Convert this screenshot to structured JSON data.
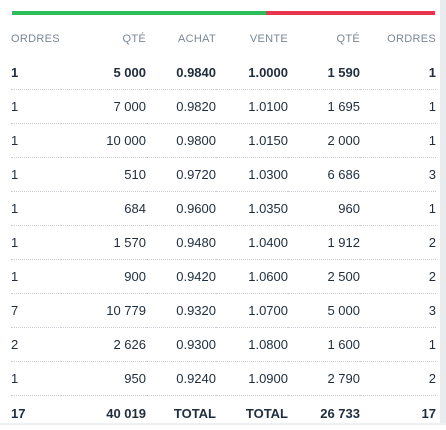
{
  "depth": {
    "buy_share": 0.6,
    "buy_color": "#2dbd5a",
    "sell_color": "#e8344e"
  },
  "headers": {
    "bid_orders": "ORDRES",
    "bid_qty": "QTÉ",
    "bid": "ACHAT",
    "ask": "VENTE",
    "ask_qty": "QTÉ",
    "ask_orders": "ORDRES"
  },
  "rows": [
    {
      "bid_orders": "1",
      "bid_qty": "5 000",
      "bid": "0.9840",
      "ask": "1.0000",
      "ask_qty": "1 590",
      "ask_orders": "1"
    },
    {
      "bid_orders": "1",
      "bid_qty": "7 000",
      "bid": "0.9820",
      "ask": "1.0100",
      "ask_qty": "1 695",
      "ask_orders": "1"
    },
    {
      "bid_orders": "1",
      "bid_qty": "10 000",
      "bid": "0.9800",
      "ask": "1.0150",
      "ask_qty": "2 000",
      "ask_orders": "1"
    },
    {
      "bid_orders": "1",
      "bid_qty": "510",
      "bid": "0.9720",
      "ask": "1.0300",
      "ask_qty": "6 686",
      "ask_orders": "3"
    },
    {
      "bid_orders": "1",
      "bid_qty": "684",
      "bid": "0.9600",
      "ask": "1.0350",
      "ask_qty": "960",
      "ask_orders": "1"
    },
    {
      "bid_orders": "1",
      "bid_qty": "1 570",
      "bid": "0.9480",
      "ask": "1.0400",
      "ask_qty": "1 912",
      "ask_orders": "2"
    },
    {
      "bid_orders": "1",
      "bid_qty": "900",
      "bid": "0.9420",
      "ask": "1.0600",
      "ask_qty": "2 500",
      "ask_orders": "2"
    },
    {
      "bid_orders": "7",
      "bid_qty": "10 779",
      "bid": "0.9320",
      "ask": "1.0700",
      "ask_qty": "5 000",
      "ask_orders": "3"
    },
    {
      "bid_orders": "2",
      "bid_qty": "2 626",
      "bid": "0.9300",
      "ask": "1.0800",
      "ask_qty": "1 600",
      "ask_orders": "1"
    },
    {
      "bid_orders": "1",
      "bid_qty": "950",
      "bid": "0.9240",
      "ask": "1.0900",
      "ask_qty": "2 790",
      "ask_orders": "2"
    }
  ],
  "totals": {
    "bid_orders": "17",
    "bid_qty": "40 019",
    "bid_label": "TOTAL",
    "ask_label": "TOTAL",
    "ask_qty": "26 733",
    "ask_orders": "17"
  }
}
